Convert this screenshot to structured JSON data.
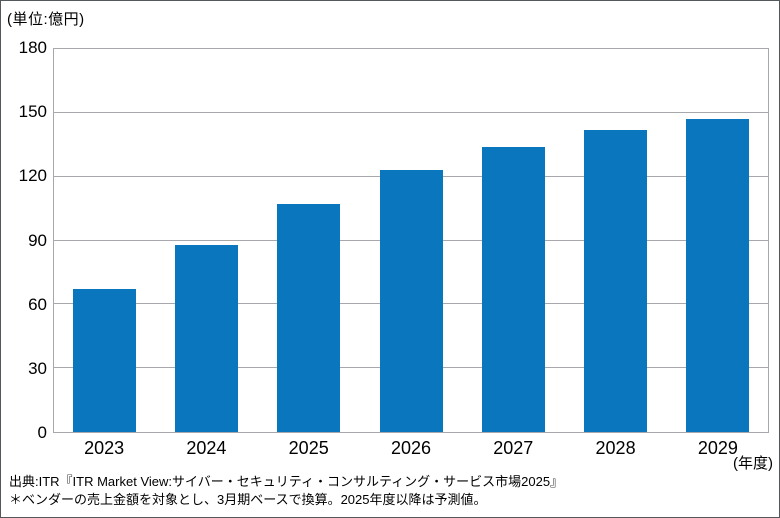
{
  "unit_label": "(単位:億円)",
  "x_axis_suffix": "(年度)",
  "source": {
    "line1": "出典:ITR『ITR Market View:サイバー・セキュリティ・コンサルティング・サービス市場2025』",
    "line2": "＊ベンダーの売上金額を対象とし、3月期ベースで換算。2025年度以降は予測値。"
  },
  "chart_data": {
    "type": "bar",
    "categories": [
      "2023",
      "2024",
      "2025",
      "2026",
      "2027",
      "2028",
      "2029"
    ],
    "values": [
      67,
      88,
      107,
      123,
      134,
      142,
      147
    ],
    "title": "",
    "xlabel": "(年度)",
    "ylabel": "(単位:億円)",
    "ylim": [
      0,
      180
    ],
    "yticks": [
      0,
      30,
      60,
      90,
      120,
      150,
      180
    ],
    "grid": true,
    "legend": null,
    "bar_color": "#0a76be",
    "gridline_color": "#a6a8ab",
    "text_color": "#000000"
  }
}
